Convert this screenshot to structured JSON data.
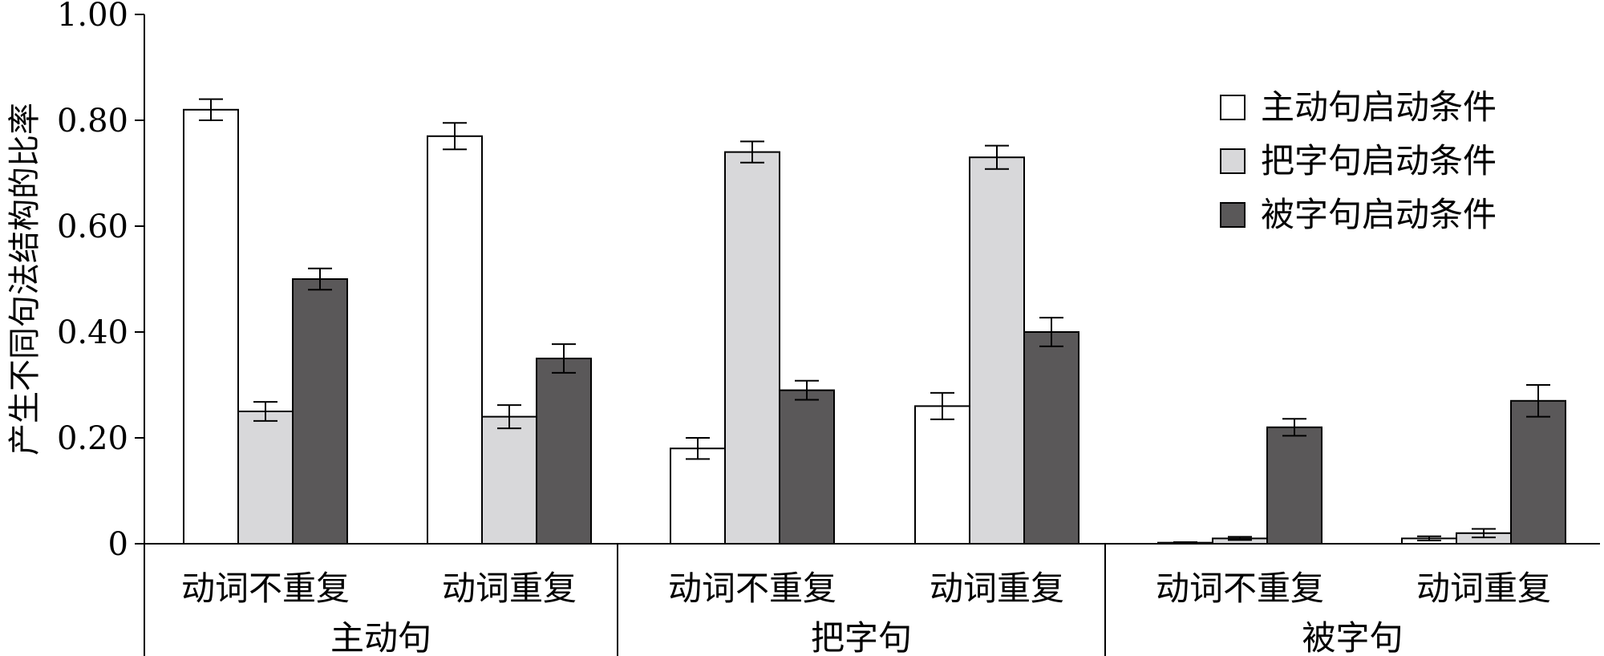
{
  "chart_data": {
    "type": "bar",
    "ylabel": "产生不同句法结构的比率",
    "ylim": [
      0,
      1
    ],
    "yticks": [
      {
        "value": 0,
        "label": "0"
      },
      {
        "value": 0.2,
        "label": "0.20"
      },
      {
        "value": 0.4,
        "label": "0.40"
      },
      {
        "value": 0.6,
        "label": "0.60"
      },
      {
        "value": 0.8,
        "label": "0.80"
      },
      {
        "value": 1.0,
        "label": "1.00"
      }
    ],
    "groups": [
      "主动句",
      "把字句",
      "被字句"
    ],
    "categories": [
      "动词不重复",
      "动词重复",
      "动词不重复",
      "动词重复",
      "动词不重复",
      "动词重复"
    ],
    "series": [
      {
        "name": "主动句启动条件",
        "color": "#ffffff",
        "values": [
          0.82,
          0.77,
          0.18,
          0.26,
          0.002,
          0.01
        ],
        "errors": [
          0.02,
          0.025,
          0.02,
          0.025,
          0.001,
          0.004
        ]
      },
      {
        "name": "把字句启动条件",
        "color": "#d8d8da",
        "values": [
          0.25,
          0.24,
          0.74,
          0.73,
          0.01,
          0.02
        ],
        "errors": [
          0.018,
          0.022,
          0.02,
          0.022,
          0.003,
          0.008
        ]
      },
      {
        "name": "被字句启动条件",
        "color": "#5a5859",
        "values": [
          0.5,
          0.35,
          0.29,
          0.4,
          0.22,
          0.27
        ],
        "errors": [
          0.02,
          0.027,
          0.018,
          0.027,
          0.016,
          0.03
        ]
      }
    ],
    "legend_position": "top-right",
    "grid": false
  }
}
